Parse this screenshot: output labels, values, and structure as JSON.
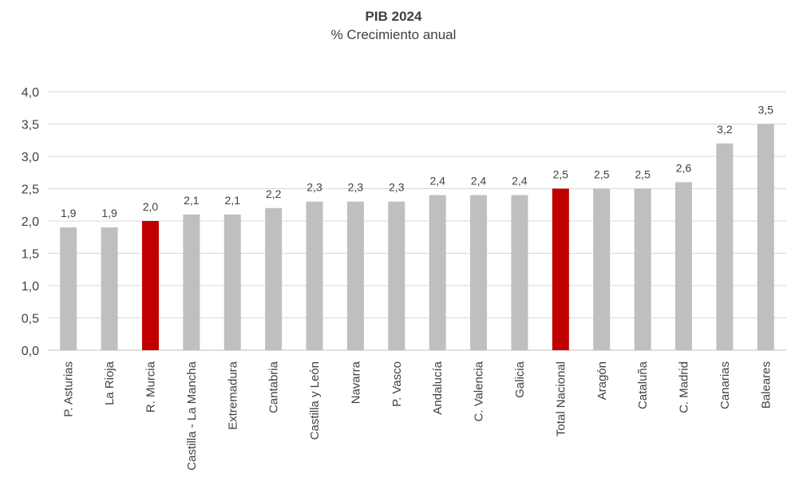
{
  "chart_data": {
    "type": "bar",
    "title": "PIB 2024",
    "subtitle": "% Crecimiento anual",
    "xlabel": "",
    "ylabel": "",
    "ylim": [
      0,
      4.0
    ],
    "yticks": [
      "0,0",
      "0,5",
      "1,0",
      "1,5",
      "2,0",
      "2,5",
      "3,0",
      "3,5",
      "4,0"
    ],
    "ytick_values": [
      0,
      0.5,
      1.0,
      1.5,
      2.0,
      2.5,
      3.0,
      3.5,
      4.0
    ],
    "grid": true,
    "legend": "none",
    "categories": [
      "P. Asturias",
      "La Rioja",
      "R. Murcia",
      "Castilla - La Mancha",
      "Extremadura",
      "Cantabria",
      "Castilla y León",
      "Navarra",
      "P. Vasco",
      "Andalucía",
      "C. Valencia",
      "Galicia",
      "Total Nacional",
      "Aragón",
      "Cataluña",
      "C. Madrid",
      "Canarias",
      "Baleares"
    ],
    "values": [
      1.9,
      1.9,
      2.0,
      2.1,
      2.1,
      2.2,
      2.3,
      2.3,
      2.3,
      2.4,
      2.4,
      2.4,
      2.5,
      2.5,
      2.5,
      2.6,
      3.2,
      3.5
    ],
    "labels": [
      "1,9",
      "1,9",
      "2,0",
      "2,1",
      "2,1",
      "2,2",
      "2,3",
      "2,3",
      "2,3",
      "2,4",
      "2,4",
      "2,4",
      "2,5",
      "2,5",
      "2,5",
      "2,6",
      "3,2",
      "3,5"
    ],
    "highlighted": [
      "R. Murcia",
      "Total Nacional"
    ],
    "colors": {
      "default_bar": "#BFBFBF",
      "highlight_bar": "#C00000",
      "gridline": "#D9D9D9",
      "axis_line": "#BFBFBF",
      "text": "#404040"
    }
  }
}
